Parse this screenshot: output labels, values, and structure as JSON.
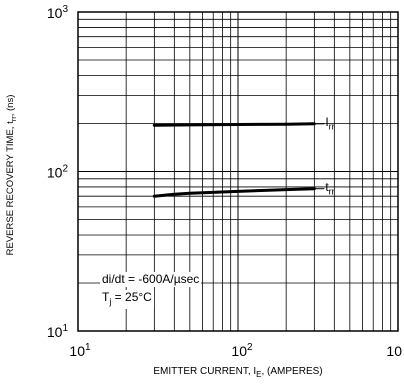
{
  "chart_data": {
    "type": "line",
    "title": "",
    "xscale": "log",
    "yscale": "log",
    "xlim": [
      10,
      1000
    ],
    "ylim": [
      10,
      1000
    ],
    "grid": true,
    "x_ticks": [
      {
        "base": "10",
        "exp": "1"
      },
      {
        "base": "10",
        "exp": "2"
      },
      {
        "base": "10",
        "exp": ""
      }
    ],
    "y_ticks": [
      {
        "base": "10",
        "exp": "1"
      },
      {
        "base": "10",
        "exp": "2"
      },
      {
        "base": "10",
        "exp": "3"
      }
    ],
    "xlabel": {
      "main": "EMITTER CURRENT, I",
      "sub": "E",
      "tail": ", (AMPERES)"
    },
    "ylabel": {
      "main": "REVERSE RECOVERY TIME, t",
      "sub": "rr",
      "tail": ", (ns)"
    },
    "series": [
      {
        "name": {
          "main": "I",
          "sub": "rr"
        },
        "x": [
          30,
          50,
          100,
          200,
          300
        ],
        "y": [
          195,
          196,
          197,
          198,
          199
        ]
      },
      {
        "name": {
          "main": "t",
          "sub": "rr"
        },
        "x": [
          30,
          40,
          50,
          100,
          200,
          300
        ],
        "y": [
          70,
          72,
          73,
          75,
          77,
          78
        ]
      }
    ],
    "annotations": {
      "didt": "di/dt = -600A/µsec",
      "tj_main": "T",
      "tj_sub": "j",
      "tj_tail": " = 25°C"
    },
    "line_color": "#000000"
  }
}
